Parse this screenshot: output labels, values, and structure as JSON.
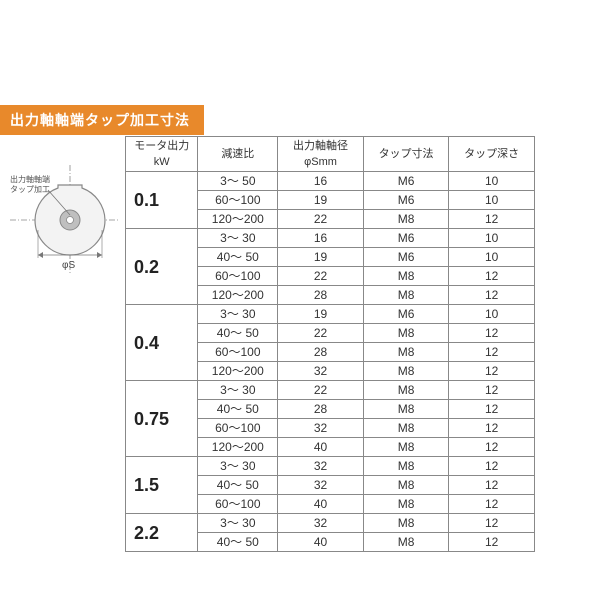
{
  "title": "出力軸軸端タップ加工寸法",
  "diagram": {
    "label_l1": "出力軸軸端",
    "label_l2": "タップ加工",
    "phi_s": "φS",
    "circle_stroke": "#888888",
    "circle_fill": "#f3f3f3",
    "center_fill": "#bfbfbf"
  },
  "table": {
    "headers": {
      "kw_l1": "モータ出力",
      "kw_l2": "kW",
      "ratio": "減速比",
      "dia_l1": "出力軸軸径",
      "dia_l2": "φSmm",
      "tap": "タップ寸法",
      "depth": "タップ深さ"
    },
    "groups": [
      {
        "kw": "0.1",
        "rows": [
          {
            "ratio": "3～ 50",
            "dia": "16",
            "tap": "M6",
            "depth": "10"
          },
          {
            "ratio": "60～100",
            "dia": "19",
            "tap": "M6",
            "depth": "10"
          },
          {
            "ratio": "120～200",
            "dia": "22",
            "tap": "M8",
            "depth": "12"
          }
        ]
      },
      {
        "kw": "0.2",
        "rows": [
          {
            "ratio": "3～ 30",
            "dia": "16",
            "tap": "M6",
            "depth": "10"
          },
          {
            "ratio": "40～ 50",
            "dia": "19",
            "tap": "M6",
            "depth": "10"
          },
          {
            "ratio": "60～100",
            "dia": "22",
            "tap": "M8",
            "depth": "12"
          },
          {
            "ratio": "120～200",
            "dia": "28",
            "tap": "M8",
            "depth": "12"
          }
        ]
      },
      {
        "kw": "0.4",
        "rows": [
          {
            "ratio": "3～ 30",
            "dia": "19",
            "tap": "M6",
            "depth": "10"
          },
          {
            "ratio": "40～ 50",
            "dia": "22",
            "tap": "M8",
            "depth": "12"
          },
          {
            "ratio": "60～100",
            "dia": "28",
            "tap": "M8",
            "depth": "12"
          },
          {
            "ratio": "120～200",
            "dia": "32",
            "tap": "M8",
            "depth": "12"
          }
        ]
      },
      {
        "kw": "0.75",
        "rows": [
          {
            "ratio": "3～ 30",
            "dia": "22",
            "tap": "M8",
            "depth": "12"
          },
          {
            "ratio": "40～ 50",
            "dia": "28",
            "tap": "M8",
            "depth": "12"
          },
          {
            "ratio": "60～100",
            "dia": "32",
            "tap": "M8",
            "depth": "12"
          },
          {
            "ratio": "120～200",
            "dia": "40",
            "tap": "M8",
            "depth": "12"
          }
        ]
      },
      {
        "kw": "1.5",
        "rows": [
          {
            "ratio": "3～ 30",
            "dia": "32",
            "tap": "M8",
            "depth": "12"
          },
          {
            "ratio": "40～ 50",
            "dia": "32",
            "tap": "M8",
            "depth": "12"
          },
          {
            "ratio": "60～100",
            "dia": "40",
            "tap": "M8",
            "depth": "12"
          }
        ]
      },
      {
        "kw": "2.2",
        "rows": [
          {
            "ratio": "3～ 30",
            "dia": "32",
            "tap": "M8",
            "depth": "12"
          },
          {
            "ratio": "40～ 50",
            "dia": "40",
            "tap": "M8",
            "depth": "12"
          }
        ]
      }
    ]
  }
}
